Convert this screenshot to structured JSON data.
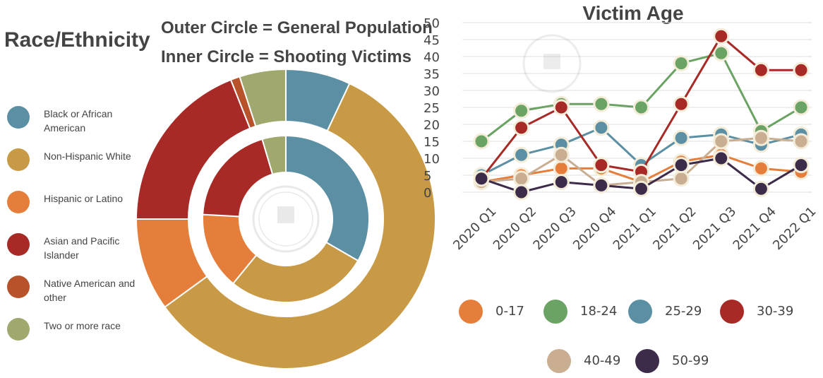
{
  "left_panel": {
    "title": "Race/Ethnicity",
    "subtitle_outer": "Outer Circle = General Population",
    "subtitle_inner": "Inner Circle = Shooting Victims",
    "legend": [
      {
        "label": "Black or African American",
        "color": "#5b8fa3"
      },
      {
        "label": "Non-Hispanic White",
        "color": "#c99a45"
      },
      {
        "label": "Hispanic or Latino",
        "color": "#e57e3a"
      },
      {
        "label": "Asian and Pacific Islander",
        "color": "#a82a26"
      },
      {
        "label": "Native American and other",
        "color": "#b7522a"
      },
      {
        "label": "Two or more race",
        "color": "#a0a86e"
      }
    ]
  },
  "chart_data": [
    {
      "type": "pie",
      "title": "",
      "rings": [
        {
          "name": "General Population",
          "categories": [
            "Black or African American",
            "Non-Hispanic White",
            "Hispanic or Latino",
            "Asian and Pacific Islander",
            "Native American and other",
            "Two or more race"
          ],
          "values": [
            7,
            58,
            10,
            19,
            1,
            5
          ]
        },
        {
          "name": "Shooting Victims",
          "categories": [
            "Black or African American",
            "Non-Hispanic White",
            "Hispanic or Latino",
            "Asian and Pacific Islander",
            "Native American and other",
            "Two or more race"
          ],
          "values": [
            29,
            24,
            13,
            17,
            0,
            4
          ]
        }
      ]
    },
    {
      "type": "line",
      "title": "Victim Age",
      "categories": [
        "2020 Q1",
        "2020 Q2",
        "2020 Q3",
        "2020 Q4",
        "2021 Q1",
        "2021 Q2",
        "2021 Q3",
        "2021 Q4",
        "2022 Q1"
      ],
      "ylim": [
        0,
        50
      ],
      "yticks": [
        0,
        5,
        10,
        15,
        20,
        25,
        30,
        35,
        40,
        45,
        50
      ],
      "grid": true,
      "series": [
        {
          "name": "0-17",
          "color": "#e57e3a",
          "values": [
            3,
            5,
            7,
            7,
            3,
            9,
            11,
            7,
            6
          ]
        },
        {
          "name": "18-24",
          "color": "#6aa363",
          "values": [
            15,
            24,
            26,
            26,
            25,
            38,
            41,
            18,
            25
          ]
        },
        {
          "name": "25-29",
          "color": "#5b8fa3",
          "values": [
            5,
            11,
            14,
            19,
            8,
            16,
            17,
            14,
            17
          ]
        },
        {
          "name": "30-39",
          "color": "#a82a26",
          "values": [
            4,
            19,
            25,
            8,
            6,
            26,
            46,
            36,
            36
          ]
        },
        {
          "name": "40-49",
          "color": "#c9ae92",
          "values": [
            3,
            4,
            11,
            2,
            3,
            4,
            15,
            16,
            15
          ]
        },
        {
          "name": "50-99",
          "color": "#3d2b4a",
          "values": [
            4,
            0,
            3,
            2,
            1,
            8,
            10,
            1,
            8
          ]
        }
      ]
    }
  ]
}
